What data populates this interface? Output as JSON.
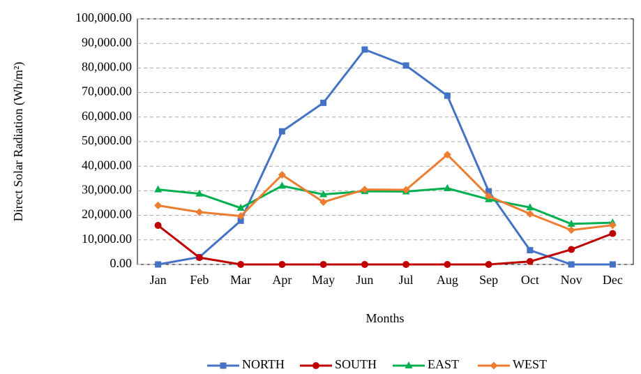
{
  "chart_data": {
    "type": "line",
    "y_label": "Direct Solar Radiation (Wh/m²)",
    "x_label": "Months",
    "categories": [
      "Jan",
      "Feb",
      "Mar",
      "Apr",
      "May",
      "Jun",
      "Jul",
      "Aug",
      "Sep",
      "Oct",
      "Nov",
      "Dec"
    ],
    "series": [
      {
        "name": "NORTH",
        "color": "#4472c4",
        "marker": "square",
        "values": [
          0,
          3000,
          17800,
          54200,
          65800,
          87500,
          81000,
          68700,
          29800,
          5800,
          0,
          0
        ]
      },
      {
        "name": "SOUTH",
        "color": "#c00000",
        "marker": "circle",
        "values": [
          15900,
          2800,
          0,
          0,
          0,
          0,
          0,
          0,
          0,
          1200,
          6100,
          12600
        ]
      },
      {
        "name": "EAST",
        "color": "#00b050",
        "marker": "triangle",
        "values": [
          30500,
          28800,
          23000,
          32000,
          28500,
          29800,
          29700,
          31000,
          26500,
          23200,
          16500,
          17000
        ]
      },
      {
        "name": "WEST",
        "color": "#ed7d31",
        "marker": "diamond",
        "values": [
          24000,
          21300,
          19700,
          36500,
          25400,
          30500,
          30400,
          44700,
          27800,
          20600,
          14000,
          16000
        ]
      }
    ],
    "ylim": [
      0,
      100000
    ],
    "yticks": [
      {
        "value": 0,
        "label": "0.00"
      },
      {
        "value": 10000,
        "label": "10,000.00"
      },
      {
        "value": 20000,
        "label": "20,000.00"
      },
      {
        "value": 30000,
        "label": "30,000.00"
      },
      {
        "value": 40000,
        "label": "40,000.00"
      },
      {
        "value": 50000,
        "label": "50,000.00"
      },
      {
        "value": 60000,
        "label": "60,000.00"
      },
      {
        "value": 70000,
        "label": "70,000.00"
      },
      {
        "value": 80000,
        "label": "80,000.00"
      },
      {
        "value": 90000,
        "label": "90,000.00"
      },
      {
        "value": 100000,
        "label": "100,000.00"
      }
    ],
    "grid": true,
    "legend": "bottom"
  }
}
